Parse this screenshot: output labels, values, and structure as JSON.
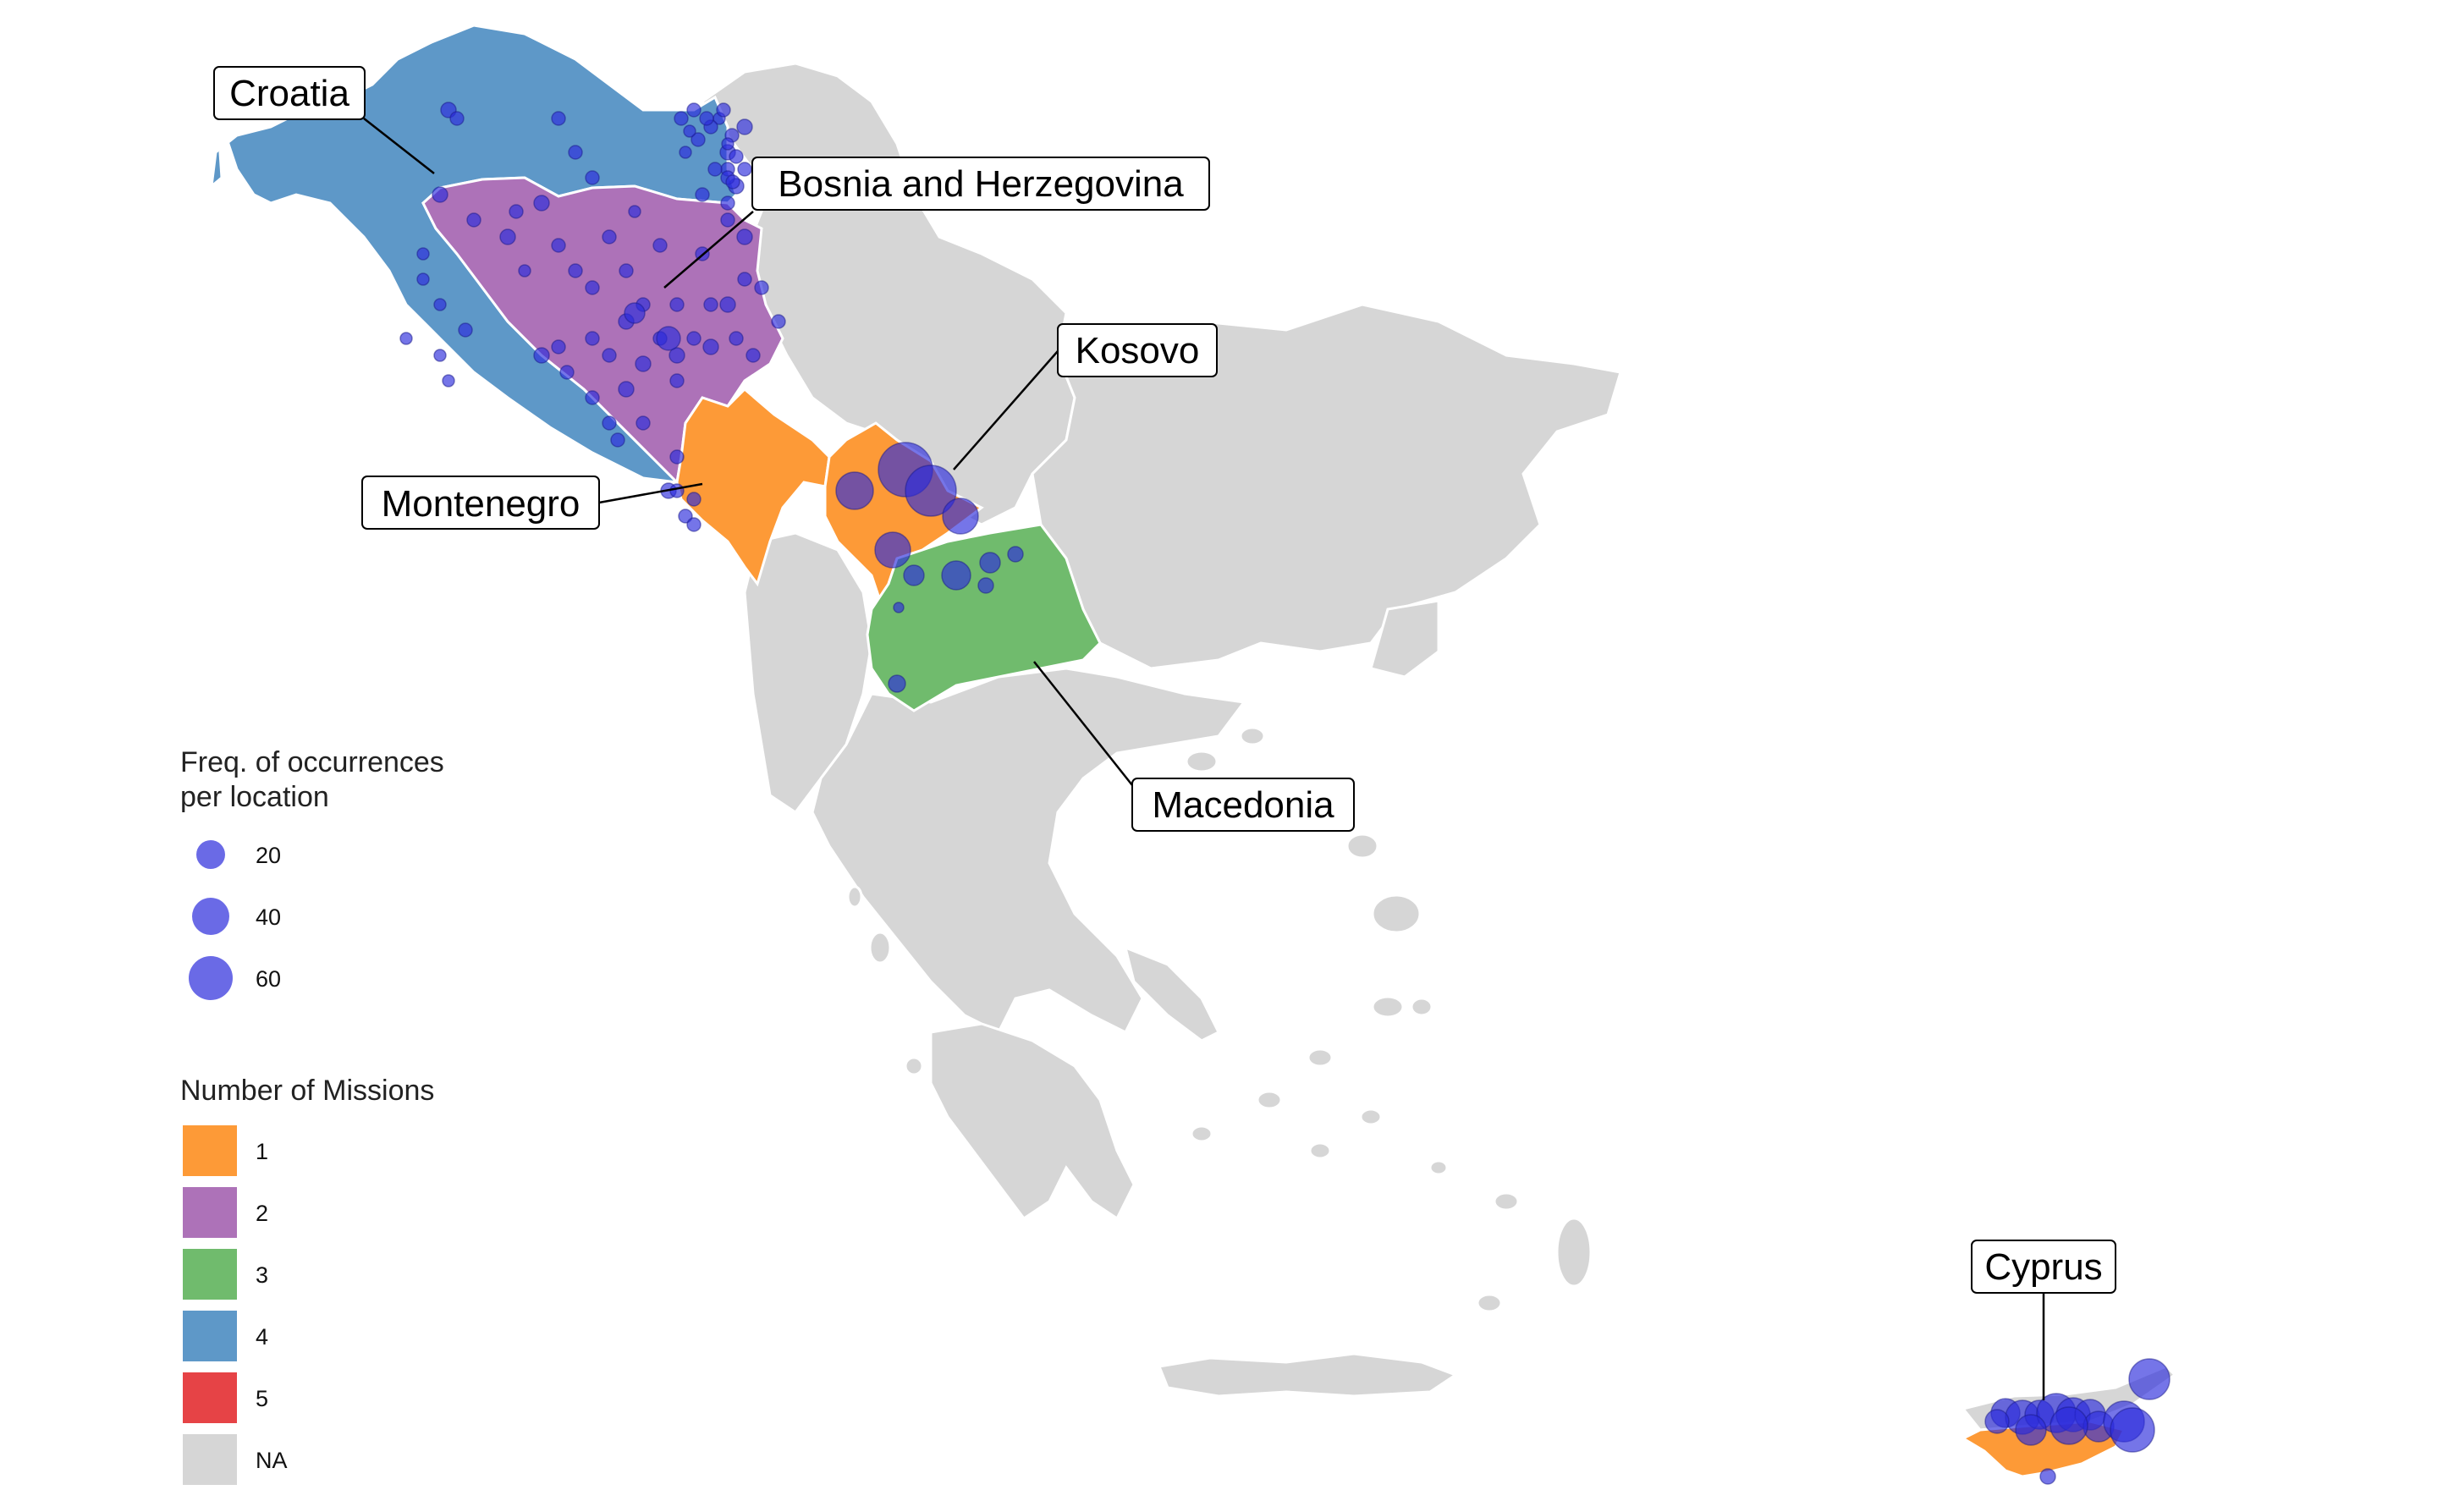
{
  "colors": {
    "na": "#d6d6d6",
    "mission_1": "#fd9a37",
    "mission_2": "#ad72b8",
    "mission_3": "#70bb6d",
    "mission_4": "#5e98c8",
    "mission_5": "#e64346",
    "point": "#2b2bdb",
    "border": "#ffffff"
  },
  "country_labels": {
    "croatia": "Croatia",
    "bosnia": "Bosnia and Herzegovina",
    "kosovo": "Kosovo",
    "montenegro": "Montenegro",
    "macedonia": "Macedonia",
    "cyprus": "Cyprus"
  },
  "legend_size": {
    "title_line1": "Freq. of occurrences",
    "title_line2": "per location",
    "items": [
      {
        "label": "20",
        "value": 20
      },
      {
        "label": "40",
        "value": 40
      },
      {
        "label": "60",
        "value": 60
      }
    ]
  },
  "legend_fill": {
    "title": "Number of Missions",
    "items": [
      {
        "label": "1",
        "color": "#fd9a37"
      },
      {
        "label": "2",
        "color": "#ad72b8"
      },
      {
        "label": "3",
        "color": "#70bb6d"
      },
      {
        "label": "4",
        "color": "#5e98c8"
      },
      {
        "label": "5",
        "color": "#e64346"
      },
      {
        "label": "NA",
        "color": "#d6d6d6"
      }
    ]
  }
}
